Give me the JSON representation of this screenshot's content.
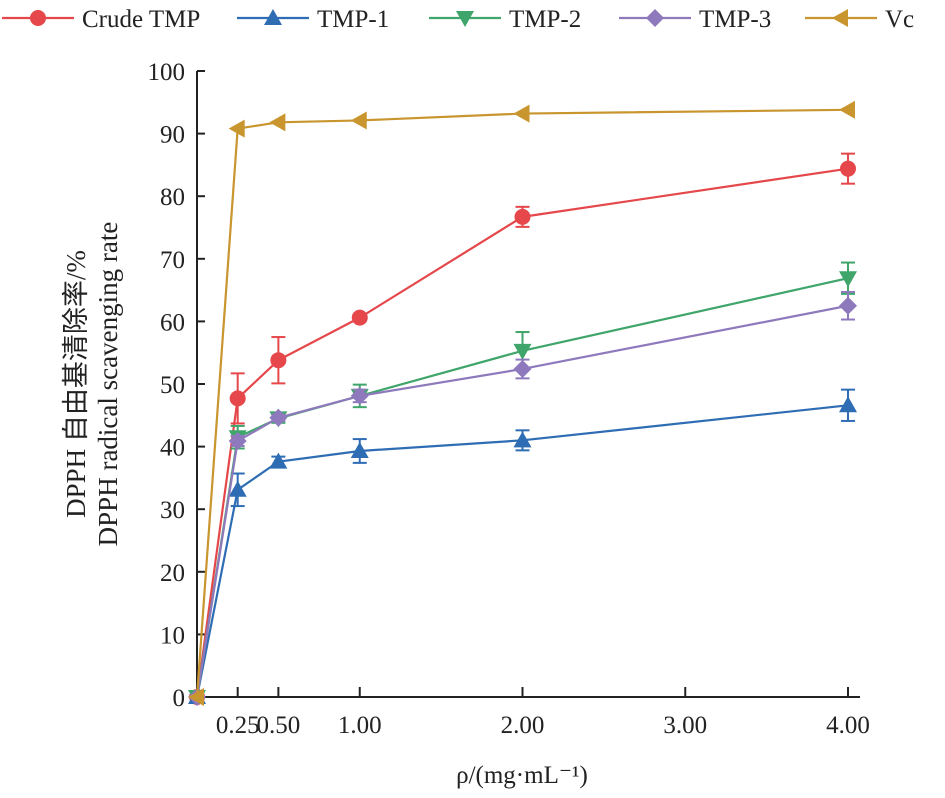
{
  "chart_data": {
    "type": "line",
    "xlabel": "ρ/(mg·mL⁻¹)",
    "ylabel_lines": [
      "DPPH 自由基清除率/%",
      "DPPH radical scavenging rate"
    ],
    "x": [
      0,
      0.25,
      0.5,
      1.0,
      2.0,
      4.0
    ],
    "x_ticks": [
      0.25,
      0.5,
      1.0,
      2.0,
      3.0,
      4.0
    ],
    "x_tick_labels": [
      "0.25",
      "0.50",
      "1.00",
      "2.00",
      "3.00",
      "4.00"
    ],
    "xlim": [
      0,
      4
    ],
    "ylim": [
      0,
      100
    ],
    "y_ticks": [
      0,
      10,
      20,
      30,
      40,
      50,
      60,
      70,
      80,
      90,
      100
    ],
    "y_tick_labels": [
      "0",
      "10",
      "20",
      "30",
      "40",
      "50",
      "60",
      "70",
      "80",
      "90",
      "100"
    ],
    "grid": false,
    "legend_position": "top",
    "series": [
      {
        "name": "Crude TMP",
        "color": "#e5474b",
        "marker": "circle",
        "values": [
          0,
          47.7,
          53.8,
          60.6,
          76.7,
          84.4
        ],
        "errors": [
          0,
          4.0,
          3.7,
          0.5,
          1.6,
          2.4
        ]
      },
      {
        "name": "TMP-1",
        "color": "#2e6db4",
        "marker": "triangle-up",
        "values": [
          0,
          33.1,
          37.6,
          39.3,
          41.0,
          46.6
        ],
        "errors": [
          0,
          2.6,
          0.8,
          1.9,
          1.6,
          2.5
        ]
      },
      {
        "name": "TMP-2",
        "color": "#3fa56a",
        "marker": "triangle-down",
        "values": [
          0,
          41.5,
          44.5,
          48.1,
          55.3,
          66.9
        ],
        "errors": [
          0,
          1.8,
          0.7,
          1.8,
          3.0,
          2.5
        ]
      },
      {
        "name": "TMP-3",
        "color": "#8e79bd",
        "marker": "diamond",
        "values": [
          0,
          40.9,
          44.6,
          48.1,
          52.4,
          62.5
        ],
        "errors": [
          0,
          0.8,
          0.5,
          1.0,
          1.5,
          2.2
        ]
      },
      {
        "name": "Vc",
        "color": "#c8952e",
        "marker": "triangle-left",
        "values": [
          0,
          90.8,
          91.8,
          92.1,
          93.2,
          93.8
        ],
        "errors": [
          0,
          0,
          0,
          0,
          0,
          0
        ]
      }
    ]
  }
}
